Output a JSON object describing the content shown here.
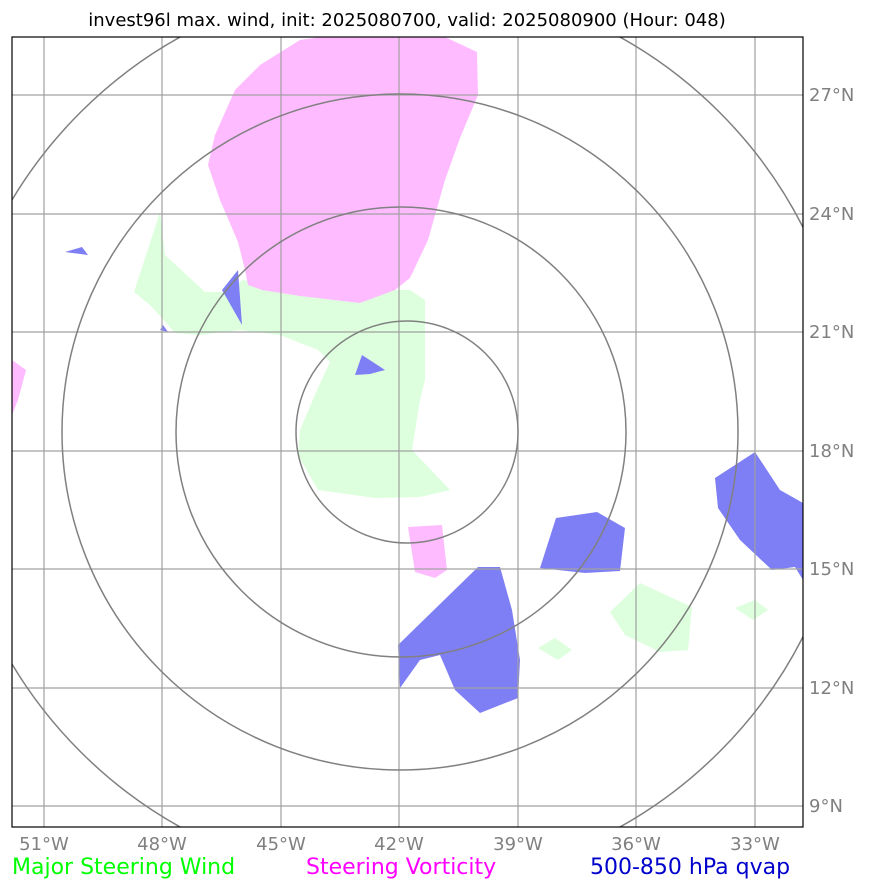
{
  "title": "invest96l max. wind, init: 2025080700, valid: 2025080900 (Hour: 048)",
  "map": {
    "lon_ticks": [
      "51°W",
      "48°W",
      "45°W",
      "42°W",
      "39°W",
      "36°W",
      "33°W"
    ],
    "lat_ticks": [
      "27°N",
      "24°N",
      "21°N",
      "18°N",
      "15°N",
      "12°N",
      "9°N"
    ],
    "center": "42°W, 18.5°N",
    "range_rings": 4,
    "gridline_color": "#808080"
  },
  "legend": [
    {
      "label": "Major Steering Wind",
      "color": "#00ff00"
    },
    {
      "label": "Steering Vorticity",
      "color": "#ff00ff"
    },
    {
      "label": "500-850 hPa qvap",
      "color": "#0000cc"
    }
  ],
  "layers": {
    "wind_fill": "#ddffdd",
    "vorticity_fill": "#ffbbff",
    "qvap_fill": "#7f7ff5"
  }
}
